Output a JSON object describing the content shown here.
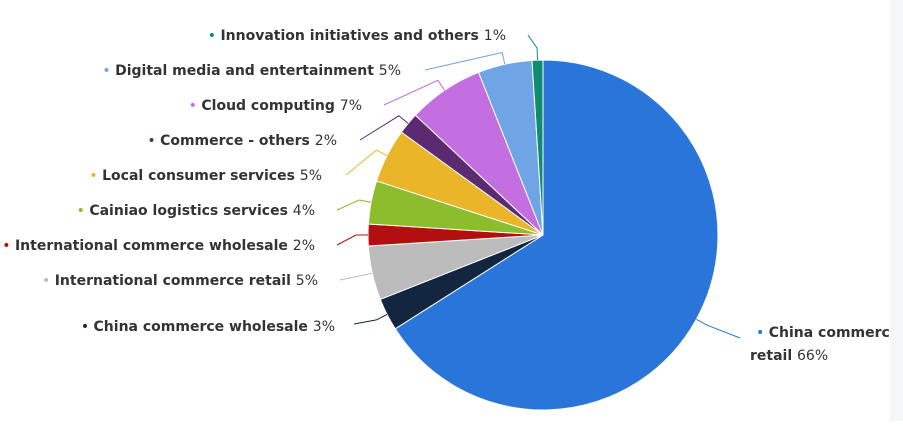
{
  "chart_data": {
    "type": "pie",
    "title": "",
    "slices": [
      {
        "label": "China commerce retail",
        "value": 66,
        "display": "66%",
        "color": "#2a75d9"
      },
      {
        "label": "China commerce wholesale",
        "value": 3,
        "display": "3%",
        "color": "#12263f"
      },
      {
        "label": "International commerce retail",
        "value": 5,
        "display": "5%",
        "color": "#bcbcbc"
      },
      {
        "label": "International commerce wholesale",
        "value": 2,
        "display": "2%",
        "color": "#b40f0f"
      },
      {
        "label": "Cainiao logistics services",
        "value": 4,
        "display": "4%",
        "color": "#8bbd2c"
      },
      {
        "label": "Local consumer services",
        "value": 5,
        "display": "5%",
        "color": "#ebb52a"
      },
      {
        "label": "Commerce - others",
        "value": 2,
        "display": "2%",
        "color": "#5b2a71"
      },
      {
        "label": "Cloud computing",
        "value": 7,
        "display": "7%",
        "color": "#c36fe0"
      },
      {
        "label": "Digital media and entertainment",
        "value": 5,
        "display": "5%",
        "color": "#6fa4e5"
      },
      {
        "label": "Innovation initiatives and others",
        "value": 1,
        "display": "1%",
        "color": "#0f8c70"
      }
    ]
  }
}
